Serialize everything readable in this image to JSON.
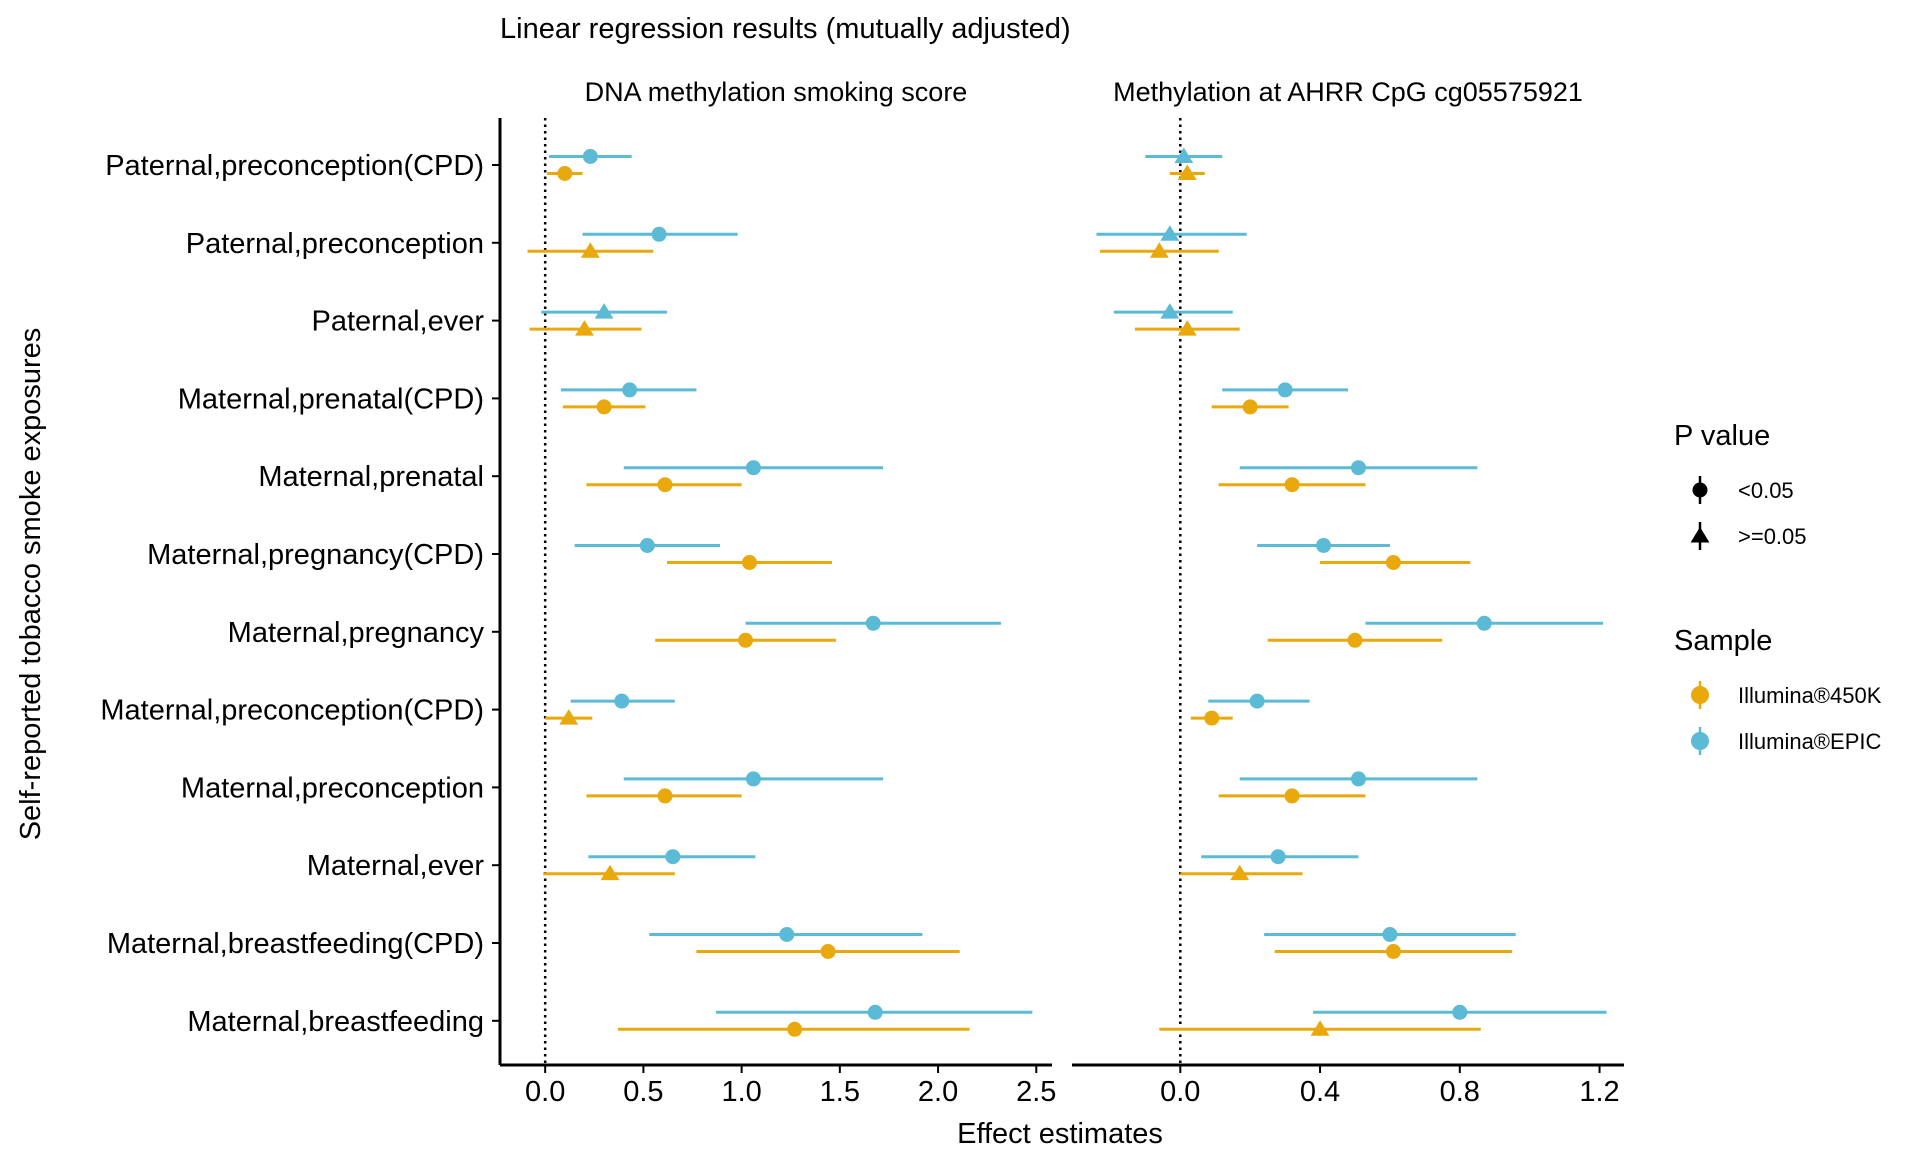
{
  "chart_data": {
    "type": "forest",
    "title": "Linear regression results (mutually adjusted)",
    "xlabel": "Effect estimates",
    "ylabel": "Self-reported tobacco smoke exposures",
    "categories": [
      "Paternal,preconception(CPD)",
      "Paternal,preconception",
      "Paternal,ever",
      "Maternal,prenatal(CPD)",
      "Maternal,prenatal",
      "Maternal,pregnancy(CPD)",
      "Maternal,pregnancy",
      "Maternal,preconception(CPD)",
      "Maternal,preconception",
      "Maternal,ever",
      "Maternal,breastfeeding(CPD)",
      "Maternal,breastfeeding"
    ],
    "legend": {
      "pvalue_title": "P value",
      "pvalue_items": [
        {
          "label": "<0.05",
          "shape": "circle"
        },
        {
          "label": ">=0.05",
          "shape": "triangle"
        }
      ],
      "sample_title": "Sample",
      "sample_items": [
        {
          "label": "Illumina®450K",
          "color": "#E9A80C"
        },
        {
          "label": "Illumina®EPIC",
          "color": "#5BBAD5"
        }
      ],
      "position": "right"
    },
    "panels": [
      {
        "title": "DNA methylation smoking score",
        "xlim": [
          -0.23,
          2.58
        ],
        "ticks": [
          {
            "v": 0.0,
            "label": "0.0"
          },
          {
            "v": 0.5,
            "label": "0.5"
          },
          {
            "v": 1.0,
            "label": "1.0"
          },
          {
            "v": 1.5,
            "label": "1.5"
          },
          {
            "v": 2.0,
            "label": "2.0"
          },
          {
            "v": 2.5,
            "label": "2.5"
          }
        ],
        "series": [
          {
            "name": "Illumina®EPIC",
            "color": "#5BBAD5",
            "points": [
              {
                "est": 0.23,
                "lo": 0.02,
                "hi": 0.44,
                "sig": true
              },
              {
                "est": 0.58,
                "lo": 0.19,
                "hi": 0.98,
                "sig": true
              },
              {
                "est": 0.3,
                "lo": -0.02,
                "hi": 0.62,
                "sig": false
              },
              {
                "est": 0.43,
                "lo": 0.08,
                "hi": 0.77,
                "sig": true
              },
              {
                "est": 1.06,
                "lo": 0.4,
                "hi": 1.72,
                "sig": true
              },
              {
                "est": 0.52,
                "lo": 0.15,
                "hi": 0.89,
                "sig": true
              },
              {
                "est": 1.67,
                "lo": 1.02,
                "hi": 2.32,
                "sig": true
              },
              {
                "est": 0.39,
                "lo": 0.13,
                "hi": 0.66,
                "sig": true
              },
              {
                "est": 1.06,
                "lo": 0.4,
                "hi": 1.72,
                "sig": true
              },
              {
                "est": 0.65,
                "lo": 0.22,
                "hi": 1.07,
                "sig": true
              },
              {
                "est": 1.23,
                "lo": 0.53,
                "hi": 1.92,
                "sig": true
              },
              {
                "est": 1.68,
                "lo": 0.87,
                "hi": 2.48,
                "sig": true
              }
            ]
          },
          {
            "name": "Illumina®450K",
            "color": "#E9A80C",
            "points": [
              {
                "est": 0.1,
                "lo": 0.01,
                "hi": 0.19,
                "sig": true
              },
              {
                "est": 0.23,
                "lo": -0.09,
                "hi": 0.55,
                "sig": false
              },
              {
                "est": 0.2,
                "lo": -0.08,
                "hi": 0.49,
                "sig": false
              },
              {
                "est": 0.3,
                "lo": 0.09,
                "hi": 0.51,
                "sig": true
              },
              {
                "est": 0.61,
                "lo": 0.21,
                "hi": 1.0,
                "sig": true
              },
              {
                "est": 1.04,
                "lo": 0.62,
                "hi": 1.46,
                "sig": true
              },
              {
                "est": 1.02,
                "lo": 0.56,
                "hi": 1.48,
                "sig": true
              },
              {
                "est": 0.12,
                "lo": 0.0,
                "hi": 0.24,
                "sig": false
              },
              {
                "est": 0.61,
                "lo": 0.21,
                "hi": 1.0,
                "sig": true
              },
              {
                "est": 0.33,
                "lo": -0.01,
                "hi": 0.66,
                "sig": false
              },
              {
                "est": 1.44,
                "lo": 0.77,
                "hi": 2.11,
                "sig": true
              },
              {
                "est": 1.27,
                "lo": 0.37,
                "hi": 2.16,
                "sig": true
              }
            ]
          }
        ]
      },
      {
        "title": "Methylation at AHRR CpG cg05575921",
        "xlim": [
          -0.31,
          1.27
        ],
        "ticks": [
          {
            "v": 0.0,
            "label": "0.0"
          },
          {
            "v": 0.4,
            "label": "0.4"
          },
          {
            "v": 0.8,
            "label": "0.8"
          },
          {
            "v": 1.2,
            "label": "1.2"
          }
        ],
        "series": [
          {
            "name": "Illumina®EPIC",
            "color": "#5BBAD5",
            "points": [
              {
                "est": 0.01,
                "lo": -0.1,
                "hi": 0.12,
                "sig": false
              },
              {
                "est": -0.03,
                "lo": -0.24,
                "hi": 0.19,
                "sig": false
              },
              {
                "est": -0.03,
                "lo": -0.19,
                "hi": 0.15,
                "sig": false
              },
              {
                "est": 0.3,
                "lo": 0.12,
                "hi": 0.48,
                "sig": true
              },
              {
                "est": 0.51,
                "lo": 0.17,
                "hi": 0.85,
                "sig": true
              },
              {
                "est": 0.41,
                "lo": 0.22,
                "hi": 0.6,
                "sig": true
              },
              {
                "est": 0.87,
                "lo": 0.53,
                "hi": 1.21,
                "sig": true
              },
              {
                "est": 0.22,
                "lo": 0.08,
                "hi": 0.37,
                "sig": true
              },
              {
                "est": 0.51,
                "lo": 0.17,
                "hi": 0.85,
                "sig": true
              },
              {
                "est": 0.28,
                "lo": 0.06,
                "hi": 0.51,
                "sig": true
              },
              {
                "est": 0.6,
                "lo": 0.24,
                "hi": 0.96,
                "sig": true
              },
              {
                "est": 0.8,
                "lo": 0.38,
                "hi": 1.22,
                "sig": true
              }
            ]
          },
          {
            "name": "Illumina®450K",
            "color": "#E9A80C",
            "points": [
              {
                "est": 0.02,
                "lo": -0.03,
                "hi": 0.07,
                "sig": false
              },
              {
                "est": -0.06,
                "lo": -0.23,
                "hi": 0.11,
                "sig": false
              },
              {
                "est": 0.02,
                "lo": -0.13,
                "hi": 0.17,
                "sig": false
              },
              {
                "est": 0.2,
                "lo": 0.09,
                "hi": 0.31,
                "sig": true
              },
              {
                "est": 0.32,
                "lo": 0.11,
                "hi": 0.53,
                "sig": true
              },
              {
                "est": 0.61,
                "lo": 0.4,
                "hi": 0.83,
                "sig": true
              },
              {
                "est": 0.5,
                "lo": 0.25,
                "hi": 0.75,
                "sig": true
              },
              {
                "est": 0.09,
                "lo": 0.03,
                "hi": 0.15,
                "sig": true
              },
              {
                "est": 0.32,
                "lo": 0.11,
                "hi": 0.53,
                "sig": true
              },
              {
                "est": 0.17,
                "lo": 0.0,
                "hi": 0.35,
                "sig": false
              },
              {
                "est": 0.61,
                "lo": 0.27,
                "hi": 0.95,
                "sig": true
              },
              {
                "est": 0.4,
                "lo": -0.06,
                "hi": 0.86,
                "sig": false
              }
            ]
          }
        ]
      }
    ]
  }
}
